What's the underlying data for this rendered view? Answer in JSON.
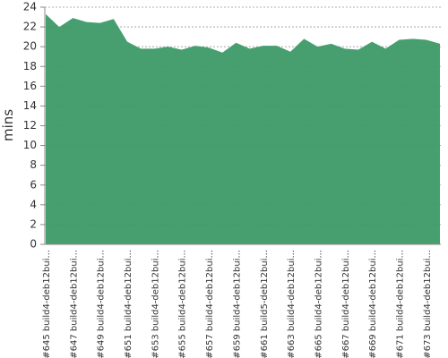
{
  "chart_data": {
    "type": "area",
    "y_label": "mins",
    "categories": [
      "#645 build4-deb12bui...",
      null,
      "#647 build4-deb12bui...",
      null,
      "#649 build4-deb12bui...",
      null,
      "#651 build4-deb12bui...",
      null,
      "#653 build4-deb12bui...",
      null,
      "#655 build4-deb12bui...",
      null,
      "#657 build4-deb12bui...",
      null,
      "#659 build4-deb12bui...",
      null,
      "#661 build5-deb12bui...",
      null,
      "#663 build4-deb12bui...",
      null,
      "#665 build4-deb12bui...",
      null,
      "#667 build4-deb12bui...",
      null,
      "#669 build4-deb12bui...",
      null,
      "#671 build4-deb12bui...",
      null,
      "#673 build4-deb12bui...",
      null
    ],
    "values": [
      23.3,
      22.0,
      22.9,
      22.5,
      22.4,
      22.8,
      20.5,
      19.8,
      19.8,
      20.0,
      19.7,
      20.1,
      19.9,
      19.4,
      20.4,
      19.8,
      20.1,
      20.1,
      19.5,
      20.8,
      20.0,
      20.3,
      19.8,
      19.7,
      20.5,
      19.8,
      20.7,
      20.8,
      20.7,
      20.3
    ],
    "color": "#3d9a67",
    "ylim": [
      0,
      24
    ],
    "yticks": [
      0,
      2,
      4,
      6,
      8,
      10,
      12,
      14,
      16,
      18,
      20,
      22,
      24
    ],
    "grid": true
  }
}
